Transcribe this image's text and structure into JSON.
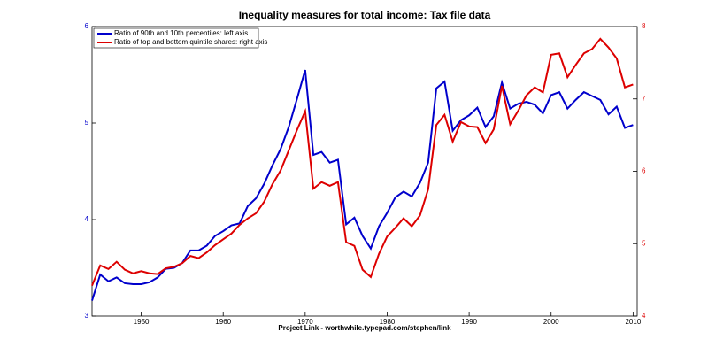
{
  "chart_data": {
    "type": "line",
    "title": "Inequality measures for total income: Tax file data",
    "footer": "Project Link - worthwhile.typepad.com/stephen/link",
    "x": [
      1944,
      1945,
      1946,
      1947,
      1948,
      1949,
      1950,
      1951,
      1952,
      1953,
      1954,
      1955,
      1956,
      1957,
      1958,
      1959,
      1960,
      1961,
      1962,
      1963,
      1964,
      1965,
      1966,
      1967,
      1968,
      1969,
      1970,
      1971,
      1972,
      1973,
      1974,
      1975,
      1976,
      1977,
      1978,
      1979,
      1980,
      1981,
      1982,
      1983,
      1984,
      1985,
      1986,
      1987,
      1988,
      1989,
      1990,
      1991,
      1992,
      1993,
      1994,
      1995,
      1996,
      1997,
      1998,
      1999,
      2000,
      2001,
      2002,
      2003,
      2004,
      2005,
      2006,
      2007,
      2008,
      2009,
      2010
    ],
    "series": [
      {
        "name": "Ratio of 90th and 10th percentiles: left axis",
        "color": "#0000cc",
        "axis": "y",
        "values": [
          3.16,
          3.43,
          3.36,
          3.4,
          3.34,
          3.33,
          3.33,
          3.35,
          3.4,
          3.49,
          3.5,
          3.55,
          3.68,
          3.68,
          3.73,
          3.83,
          3.88,
          3.94,
          3.96,
          4.14,
          4.22,
          4.37,
          4.56,
          4.73,
          4.96,
          5.25,
          5.55,
          4.67,
          4.7,
          4.59,
          4.62,
          3.95,
          4.02,
          3.83,
          3.7,
          3.93,
          4.07,
          4.23,
          4.29,
          4.24,
          4.38,
          4.59,
          5.36,
          5.43,
          4.92,
          5.03,
          5.08,
          5.16,
          4.96,
          5.07,
          5.42,
          5.15,
          5.2,
          5.22,
          5.19,
          5.1,
          5.29,
          5.32,
          5.15,
          5.24,
          5.32,
          5.28,
          5.24,
          5.09,
          5.17,
          4.95,
          4.98
        ]
      },
      {
        "name": "Ratio of top and bottom quintile shares: right axis",
        "color": "#dd0000",
        "axis": "y2",
        "values": [
          4.42,
          4.7,
          4.65,
          4.75,
          4.64,
          4.59,
          4.62,
          4.59,
          4.58,
          4.66,
          4.68,
          4.73,
          4.83,
          4.8,
          4.88,
          4.98,
          5.06,
          5.14,
          5.26,
          5.35,
          5.42,
          5.58,
          5.82,
          6.01,
          6.29,
          6.57,
          6.83,
          5.76,
          5.85,
          5.8,
          5.85,
          5.02,
          4.97,
          4.64,
          4.54,
          4.86,
          5.1,
          5.22,
          5.35,
          5.24,
          5.39,
          5.75,
          6.64,
          6.78,
          6.41,
          6.68,
          6.62,
          6.61,
          6.39,
          6.58,
          7.18,
          6.65,
          6.84,
          7.05,
          7.16,
          7.09,
          7.61,
          7.63,
          7.3,
          7.47,
          7.63,
          7.69,
          7.83,
          7.71,
          7.56,
          7.16,
          7.2
        ]
      }
    ],
    "xlim": [
      1944,
      2010.5
    ],
    "xticks": [
      1950,
      1960,
      1970,
      1980,
      1990,
      2000,
      2010
    ],
    "ylim": [
      3,
      6
    ],
    "yticks": [
      3,
      4,
      5,
      6
    ],
    "y2lim": [
      4,
      8
    ],
    "y2ticks": [
      4,
      5,
      6,
      7,
      8
    ],
    "legend": "upper left"
  }
}
